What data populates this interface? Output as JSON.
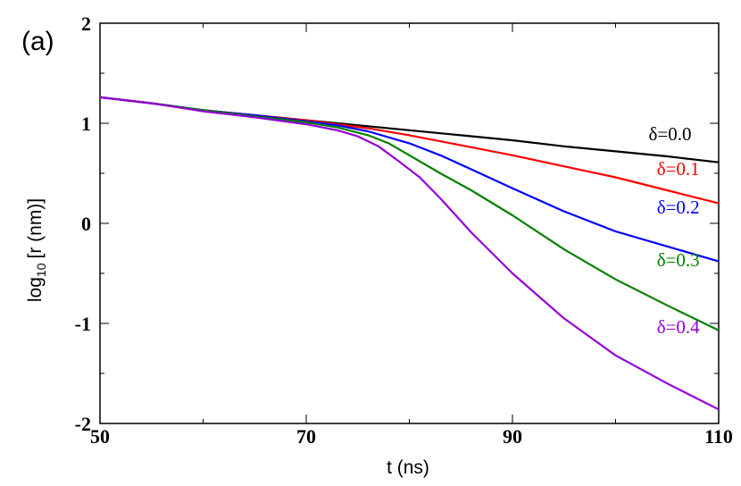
{
  "panel_label": "(a)",
  "chart_data": {
    "type": "line",
    "title": "",
    "xlabel": "t (ns)",
    "ylabel_main": "log",
    "ylabel_sub": "10",
    "ylabel_rest": "[r (nm)]",
    "xlim": [
      50,
      110
    ],
    "ylim": [
      -2,
      2
    ],
    "x_ticks": [
      {
        "value": 50,
        "label": "50"
      },
      {
        "value": 70,
        "label": "70"
      },
      {
        "value": 90,
        "label": "90"
      },
      {
        "value": 110,
        "label": "110"
      }
    ],
    "y_ticks": [
      {
        "value": -2,
        "label": "-2"
      },
      {
        "value": -1,
        "label": "-1"
      },
      {
        "value": 0,
        "label": "0"
      },
      {
        "value": 1,
        "label": "1"
      },
      {
        "value": 2,
        "label": "2"
      }
    ],
    "x_minor_step": 10,
    "y_minor_step": 0.5,
    "grid": false,
    "legend": "inline labels at right end of curves",
    "series": [
      {
        "name": "δ=0.0",
        "color": "#000000",
        "label_at": [
          103.2,
          0.83
        ],
        "points": [
          [
            50,
            1.26
          ],
          [
            55,
            1.2
          ],
          [
            60,
            1.13
          ],
          [
            65,
            1.08
          ],
          [
            70,
            1.03
          ],
          [
            75,
            0.98
          ],
          [
            80,
            0.93
          ],
          [
            85,
            0.88
          ],
          [
            90,
            0.83
          ],
          [
            95,
            0.77
          ],
          [
            100,
            0.72
          ],
          [
            105,
            0.67
          ],
          [
            110,
            0.61
          ]
        ]
      },
      {
        "name": "δ=0.1",
        "color": "#ff0000",
        "label_at": [
          104.0,
          0.48
        ],
        "points": [
          [
            50,
            1.26
          ],
          [
            55,
            1.2
          ],
          [
            60,
            1.13
          ],
          [
            65,
            1.08
          ],
          [
            70,
            1.03
          ],
          [
            73,
            0.99
          ],
          [
            76,
            0.95
          ],
          [
            80,
            0.88
          ],
          [
            85,
            0.78
          ],
          [
            90,
            0.68
          ],
          [
            95,
            0.57
          ],
          [
            100,
            0.46
          ],
          [
            105,
            0.33
          ],
          [
            110,
            0.2
          ]
        ]
      },
      {
        "name": "δ=0.2",
        "color": "#0000ff",
        "label_at": [
          104.0,
          0.1
        ],
        "points": [
          [
            50,
            1.26
          ],
          [
            55,
            1.2
          ],
          [
            60,
            1.13
          ],
          [
            65,
            1.08
          ],
          [
            70,
            1.02
          ],
          [
            73,
            0.98
          ],
          [
            76,
            0.92
          ],
          [
            80,
            0.8
          ],
          [
            83,
            0.68
          ],
          [
            86,
            0.54
          ],
          [
            90,
            0.35
          ],
          [
            95,
            0.12
          ],
          [
            100,
            -0.08
          ],
          [
            105,
            -0.23
          ],
          [
            110,
            -0.38
          ]
        ]
      },
      {
        "name": "δ=0.3",
        "color": "#008000",
        "label_at": [
          104.0,
          -0.43
        ],
        "points": [
          [
            50,
            1.26
          ],
          [
            55,
            1.2
          ],
          [
            60,
            1.13
          ],
          [
            65,
            1.07
          ],
          [
            70,
            1.01
          ],
          [
            73,
            0.96
          ],
          [
            76,
            0.88
          ],
          [
            78,
            0.8
          ],
          [
            80,
            0.68
          ],
          [
            83,
            0.5
          ],
          [
            86,
            0.33
          ],
          [
            90,
            0.08
          ],
          [
            95,
            -0.26
          ],
          [
            100,
            -0.56
          ],
          [
            105,
            -0.82
          ],
          [
            110,
            -1.07
          ]
        ]
      },
      {
        "name": "δ=0.4",
        "color": "#9400d3",
        "label_at": [
          104.0,
          -1.1
        ],
        "points": [
          [
            50,
            1.26
          ],
          [
            55,
            1.2
          ],
          [
            60,
            1.12
          ],
          [
            65,
            1.06
          ],
          [
            70,
            0.99
          ],
          [
            73,
            0.93
          ],
          [
            75,
            0.87
          ],
          [
            77,
            0.77
          ],
          [
            79,
            0.62
          ],
          [
            81,
            0.46
          ],
          [
            83,
            0.25
          ],
          [
            86,
            -0.09
          ],
          [
            90,
            -0.5
          ],
          [
            95,
            -0.95
          ],
          [
            100,
            -1.32
          ],
          [
            105,
            -1.6
          ],
          [
            110,
            -1.86
          ]
        ]
      }
    ]
  }
}
